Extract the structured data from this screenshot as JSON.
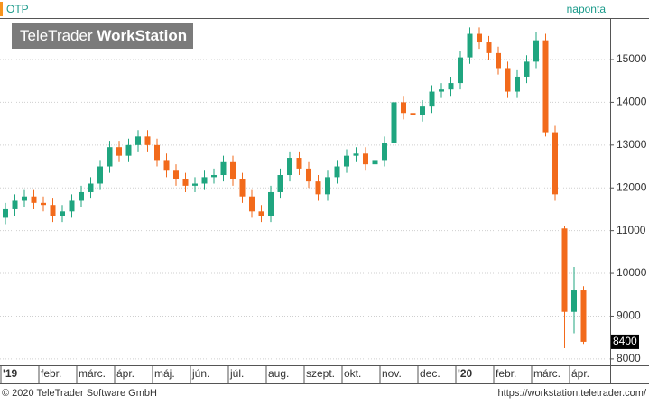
{
  "chart_data": {
    "type": "candlestick",
    "title": "OTP",
    "interval": "naponta",
    "watermark": {
      "brand": "TeleTrader",
      "product": "WorkStation"
    },
    "footer_left": "© 2020 TeleTrader Software GmbH",
    "footer_right": "https://workstation.teletrader.com/",
    "up_color": "#1fa57f",
    "down_color": "#f26a1b",
    "grid": true,
    "ylim": [
      7850,
      15970
    ],
    "yticks": [
      8000,
      9000,
      10000,
      11000,
      12000,
      13000,
      14000,
      15000
    ],
    "categories": [
      "'19",
      null,
      null,
      null,
      "febr.",
      null,
      null,
      null,
      "márc.",
      null,
      null,
      null,
      "ápr.",
      null,
      null,
      null,
      "máj.",
      null,
      null,
      null,
      "jún.",
      null,
      null,
      null,
      "júl.",
      null,
      null,
      null,
      "aug.",
      null,
      null,
      null,
      "szept.",
      null,
      null,
      null,
      "okt.",
      null,
      null,
      null,
      "nov.",
      null,
      null,
      null,
      "dec.",
      null,
      null,
      null,
      "'20",
      null,
      null,
      null,
      "febr.",
      null,
      null,
      null,
      "márc.",
      null,
      null,
      null,
      "ápr.",
      null
    ],
    "open": [
      11300,
      11500,
      11700,
      11800,
      11650,
      11600,
      11350,
      11450,
      11700,
      11900,
      12100,
      12500,
      12950,
      12750,
      13000,
      13200,
      13000,
      12650,
      12400,
      12200,
      12050,
      12100,
      12250,
      12300,
      12600,
      12200,
      11800,
      11450,
      11350,
      11900,
      12300,
      12700,
      12450,
      12150,
      11850,
      12250,
      12500,
      12750,
      12800,
      12550,
      12650,
      13050,
      14000,
      13750,
      13700,
      13900,
      14250,
      14300,
      14450,
      15050,
      15600,
      15400,
      15150,
      14800,
      14250,
      14600,
      14950,
      15450,
      13300,
      11050,
      9100,
      9600
    ],
    "high": [
      11650,
      11850,
      11950,
      11950,
      11800,
      11750,
      11600,
      11850,
      12050,
      12250,
      12650,
      13100,
      13100,
      13150,
      13350,
      13350,
      13150,
      12800,
      12550,
      12350,
      12250,
      12400,
      12450,
      12750,
      12750,
      12350,
      11950,
      11600,
      12050,
      12450,
      12850,
      12850,
      12600,
      12300,
      12400,
      12650,
      12900,
      12950,
      12950,
      12800,
      13200,
      14150,
      14150,
      13900,
      14050,
      14400,
      14450,
      14600,
      15200,
      15750,
      15750,
      15550,
      15300,
      14950,
      14750,
      15100,
      15650,
      15600,
      13450,
      11100,
      10150,
      9700
    ],
    "low": [
      11150,
      11350,
      11550,
      11500,
      11450,
      11200,
      11200,
      11300,
      11550,
      11750,
      11950,
      12350,
      12600,
      12600,
      12850,
      12850,
      12500,
      12250,
      12050,
      11900,
      11900,
      11950,
      12100,
      12150,
      12050,
      11650,
      11300,
      11200,
      11200,
      11750,
      12150,
      12300,
      12000,
      11700,
      11700,
      12100,
      12350,
      12600,
      12400,
      12400,
      12500,
      12900,
      13600,
      13550,
      13550,
      13750,
      14100,
      14150,
      14300,
      14900,
      15250,
      15000,
      14650,
      14100,
      14100,
      14450,
      14800,
      13200,
      11700,
      8250,
      8600,
      8350
    ],
    "close": [
      11500,
      11700,
      11800,
      11650,
      11600,
      11350,
      11450,
      11700,
      11900,
      12100,
      12500,
      12950,
      12750,
      13000,
      13200,
      13000,
      12650,
      12400,
      12200,
      12050,
      12100,
      12250,
      12300,
      12600,
      12200,
      11800,
      11450,
      11350,
      11900,
      12300,
      12700,
      12450,
      12150,
      11850,
      12250,
      12500,
      12750,
      12800,
      12550,
      12650,
      13050,
      14000,
      13750,
      13700,
      13900,
      14250,
      14300,
      14450,
      15050,
      15600,
      15400,
      15150,
      14800,
      14250,
      14600,
      14950,
      15450,
      13300,
      11850,
      9100,
      9600,
      8400
    ]
  }
}
